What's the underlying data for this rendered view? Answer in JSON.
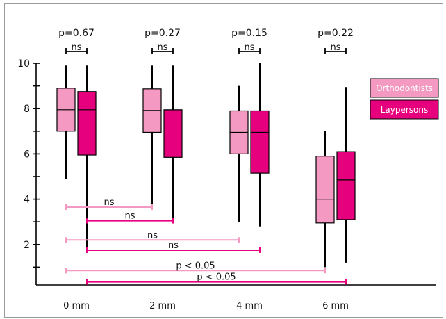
{
  "chart_data": {
    "type": "boxplot",
    "categories": [
      "0 mm",
      "2 mm",
      "4 mm",
      "6 mm"
    ],
    "ylim": [
      0,
      10
    ],
    "yticks": [
      2,
      4,
      6,
      8,
      10
    ],
    "series": [
      {
        "name": "Orthodontists",
        "color": "#f49ac2",
        "boxes": [
          {
            "min": 4.9,
            "q1": 7.0,
            "median": 7.95,
            "q3": 8.9,
            "max": 9.9
          },
          {
            "min": 3.8,
            "q1": 6.95,
            "median": 7.92,
            "q3": 8.87,
            "max": 9.9
          },
          {
            "min": 3.0,
            "q1": 6.0,
            "median": 6.95,
            "q3": 7.9,
            "max": 9.0
          },
          {
            "min": 1.0,
            "q1": 2.95,
            "median": 4.0,
            "q3": 5.9,
            "max": 7.0
          }
        ]
      },
      {
        "name": "Laypersons",
        "color": "#e6007e",
        "boxes": [
          {
            "min": 1.7,
            "q1": 5.95,
            "median": 7.95,
            "q3": 8.75,
            "max": 9.9
          },
          {
            "min": 3.0,
            "q1": 5.85,
            "median": 7.9,
            "q3": 7.95,
            "max": 9.9
          },
          {
            "min": 2.8,
            "q1": 5.15,
            "median": 6.95,
            "q3": 7.9,
            "max": 10.0
          },
          {
            "min": 1.2,
            "q1": 3.1,
            "median": 4.85,
            "q3": 6.1,
            "max": 8.95
          }
        ]
      }
    ],
    "pvalues_top": [
      "p=0.67",
      "p=0.27",
      "p=0.15",
      "p=0.22"
    ],
    "ns_top": [
      "ns",
      "ns",
      "ns",
      "ns"
    ],
    "comparisons": [
      {
        "series": "Orthodontists",
        "from": "0 mm",
        "to": "2 mm",
        "label": "ns",
        "y": 3.65
      },
      {
        "series": "Laypersons",
        "from": "0 mm",
        "to": "2 mm",
        "label": "ns",
        "y": 3.05
      },
      {
        "series": "Orthodontists",
        "from": "0 mm",
        "to": "4 mm",
        "label": "ns",
        "y": 2.2
      },
      {
        "series": "Laypersons",
        "from": "0 mm",
        "to": "4 mm",
        "label": "ns",
        "y": 1.75
      },
      {
        "series": "Orthodontists",
        "from": "0 mm",
        "to": "6 mm",
        "label": "p < 0.05",
        "y": 0.85
      },
      {
        "series": "Laypersons",
        "from": "0 mm",
        "to": "6 mm",
        "label": "p < 0.05",
        "y": 0.35
      }
    ],
    "legend": {
      "position": "right",
      "entries": [
        "Orthodontists",
        "Laypersons"
      ]
    }
  }
}
